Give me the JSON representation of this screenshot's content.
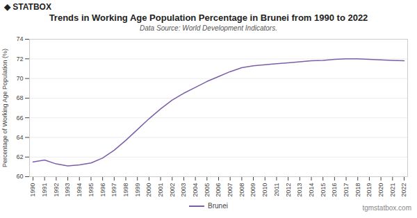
{
  "chart_data": {
    "type": "line",
    "title": "Trends in Working Age Population Percentage in Brunei from 1990 to 2022",
    "subtitle": "Data Source: World Development Indicators.",
    "ylabel": "Percentage of Working Age Population (%)",
    "annotations": [
      "◆ STATBOX",
      "tgmstatbox.com"
    ],
    "x": [
      1990,
      1991,
      1992,
      1993,
      1994,
      1995,
      1996,
      1997,
      1998,
      1999,
      2000,
      2001,
      2002,
      2003,
      2004,
      2005,
      2006,
      2007,
      2008,
      2009,
      2010,
      2011,
      2012,
      2013,
      2014,
      2015,
      2016,
      2017,
      2018,
      2019,
      2020,
      2021,
      2022
    ],
    "series": [
      {
        "name": "Brunei",
        "color": "#7B5EA7",
        "values": [
          61.5,
          61.7,
          61.3,
          61.1,
          61.2,
          61.4,
          61.9,
          62.7,
          63.7,
          64.8,
          65.9,
          66.9,
          67.8,
          68.5,
          69.1,
          69.7,
          70.2,
          70.7,
          71.1,
          71.3,
          71.4,
          71.5,
          71.6,
          71.7,
          71.8,
          71.85,
          71.95,
          72.0,
          72.0,
          71.95,
          71.9,
          71.85,
          71.8
        ]
      }
    ],
    "xlim": [
      1989.7,
      2022.3
    ],
    "xticks": [
      1990,
      1991,
      1992,
      1993,
      1994,
      1995,
      1996,
      1997,
      1998,
      1999,
      2000,
      2001,
      2002,
      2003,
      2004,
      2005,
      2006,
      2007,
      2008,
      2009,
      2010,
      2011,
      2012,
      2013,
      2014,
      2015,
      2016,
      2017,
      2018,
      2019,
      2020,
      2021,
      2022
    ],
    "ylim": [
      60,
      74
    ],
    "yticks": [
      60,
      62,
      64,
      66,
      68,
      70,
      72,
      74
    ],
    "grid": true,
    "legend": "bottom"
  }
}
